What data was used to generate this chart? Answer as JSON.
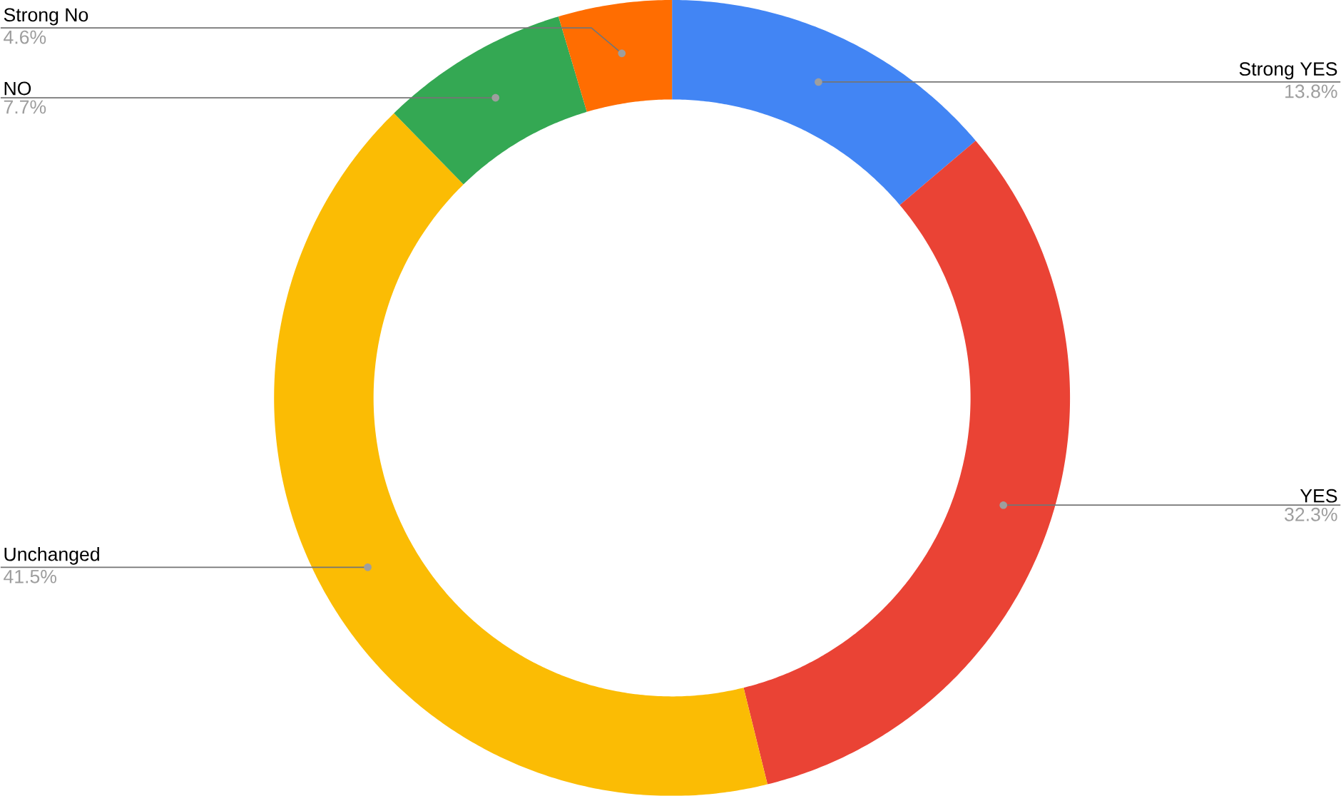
{
  "chart_data": {
    "type": "donut",
    "categories": [
      "Strong YES",
      "YES",
      "Unchanged",
      "NO",
      "Strong No"
    ],
    "values": [
      13.8,
      32.3,
      41.5,
      7.7,
      4.6
    ],
    "colors": [
      "#4285f4",
      "#ea4335",
      "#fbbc04",
      "#34a853",
      "#ff6d01"
    ],
    "value_labels": [
      "13.8%",
      "32.3%",
      "41.5%",
      "7.7%",
      "4.6%"
    ],
    "legend": false
  }
}
